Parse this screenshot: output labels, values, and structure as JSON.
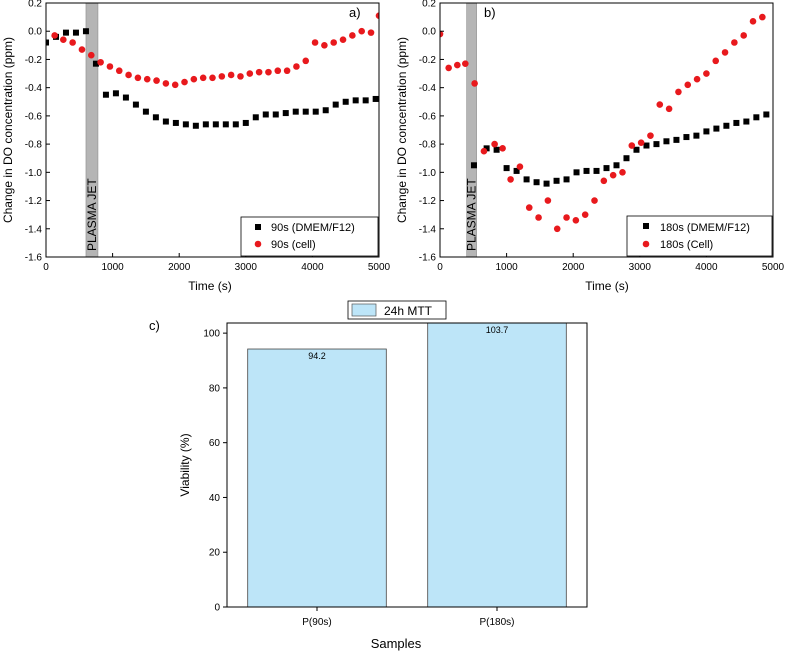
{
  "chart_data": [
    {
      "id": "a",
      "panel_label": "a)",
      "type": "scatter",
      "xlabel": "Time (s)",
      "ylabel": "Change in DO concentration (ppm)",
      "xlim": [
        0,
        5000
      ],
      "ylim": [
        -1.6,
        0.2
      ],
      "xticks": [
        0,
        1000,
        2000,
        3000,
        4000,
        5000
      ],
      "yticks": [
        -1.6,
        -1.4,
        -1.2,
        -1.0,
        -0.8,
        -0.6,
        -0.4,
        -0.2,
        0.0,
        0.2
      ],
      "ytick_labels": [
        "-1.6",
        "-1.4",
        "-1.2",
        "-1.0",
        "-0.8",
        "-0.6",
        "-0.4",
        "-0.2",
        "0.0",
        "0.2"
      ],
      "band": {
        "label": "PLASMA JET",
        "x_start": 600,
        "x_end": 780
      },
      "legend_position": "bottom-right",
      "series": [
        {
          "name": "90s (DMEM/F12)",
          "marker": "square",
          "color": "#000000",
          "x": [
            0,
            150,
            300,
            450,
            600,
            750,
            900,
            1050,
            1200,
            1350,
            1500,
            1650,
            1800,
            1950,
            2100,
            2250,
            2400,
            2550,
            2700,
            2850,
            3000,
            3150,
            3300,
            3450,
            3600,
            3750,
            3900,
            4050,
            4200,
            4350,
            4500,
            4650,
            4800,
            4950
          ],
          "y": [
            -0.08,
            -0.04,
            -0.01,
            -0.01,
            0.0,
            -0.23,
            -0.45,
            -0.44,
            -0.47,
            -0.52,
            -0.57,
            -0.61,
            -0.64,
            -0.65,
            -0.66,
            -0.67,
            -0.66,
            -0.66,
            -0.66,
            -0.66,
            -0.65,
            -0.61,
            -0.59,
            -0.59,
            -0.58,
            -0.57,
            -0.57,
            -0.57,
            -0.56,
            -0.52,
            -0.5,
            -0.49,
            -0.49,
            -0.48
          ]
        },
        {
          "name": "90s (cell)",
          "marker": "circle",
          "color": "#e8191d",
          "x": [
            130,
            260,
            400,
            540,
            680,
            820,
            960,
            1100,
            1240,
            1380,
            1520,
            1660,
            1800,
            1940,
            2080,
            2220,
            2360,
            2500,
            2640,
            2780,
            2920,
            3060,
            3200,
            3340,
            3480,
            3620,
            3760,
            3900,
            4040,
            4180,
            4320,
            4460,
            4600,
            4740,
            4880,
            5000
          ],
          "y": [
            -0.03,
            -0.06,
            -0.08,
            -0.13,
            -0.17,
            -0.22,
            -0.25,
            -0.28,
            -0.31,
            -0.33,
            -0.34,
            -0.35,
            -0.37,
            -0.38,
            -0.36,
            -0.34,
            -0.33,
            -0.33,
            -0.32,
            -0.31,
            -0.32,
            -0.3,
            -0.29,
            -0.29,
            -0.28,
            -0.28,
            -0.25,
            -0.21,
            -0.08,
            -0.1,
            -0.08,
            -0.06,
            -0.03,
            0.0,
            -0.01,
            0.11
          ]
        }
      ]
    },
    {
      "id": "b",
      "panel_label": "b)",
      "type": "scatter",
      "xlabel": "Time (s)",
      "ylabel": "Change in DO concentration (ppm)",
      "xlim": [
        0,
        5000
      ],
      "ylim": [
        -1.6,
        0.2
      ],
      "xticks": [
        0,
        1000,
        2000,
        3000,
        4000,
        5000
      ],
      "yticks": [
        -1.6,
        -1.4,
        -1.2,
        -1.0,
        -0.8,
        -0.6,
        -0.4,
        -0.2,
        0.0,
        0.2
      ],
      "ytick_labels": [
        "-1.6",
        "-1.4",
        "-1.2",
        "-1.0",
        "-0.8",
        "-0.6",
        "-0.4",
        "-0.2",
        "0.0",
        "0.2"
      ],
      "band": {
        "label": "PLASMA JET",
        "x_start": 400,
        "x_end": 550
      },
      "legend_position": "bottom-right",
      "series": [
        {
          "name": "180s (DMEM/F12)",
          "marker": "square",
          "color": "#000000",
          "x": [
            510,
            700,
            850,
            1000,
            1150,
            1300,
            1450,
            1600,
            1750,
            1900,
            2050,
            2200,
            2350,
            2500,
            2650,
            2800,
            2950,
            3100,
            3250,
            3400,
            3550,
            3700,
            3850,
            4000,
            4150,
            4300,
            4450,
            4600,
            4750,
            4900
          ],
          "y": [
            -0.95,
            -0.83,
            -0.84,
            -0.97,
            -0.99,
            -1.05,
            -1.07,
            -1.08,
            -1.06,
            -1.05,
            -1.0,
            -0.99,
            -0.99,
            -0.97,
            -0.95,
            -0.9,
            -0.84,
            -0.81,
            -0.8,
            -0.78,
            -0.77,
            -0.75,
            -0.74,
            -0.71,
            -0.69,
            -0.67,
            -0.65,
            -0.64,
            -0.61,
            -0.59
          ]
        },
        {
          "name": "180s (Cell)",
          "marker": "circle",
          "color": "#e8191d",
          "x": [
            0,
            130,
            260,
            380,
            520,
            660,
            820,
            940,
            1060,
            1200,
            1340,
            1480,
            1620,
            1760,
            1900,
            2040,
            2180,
            2320,
            2460,
            2600,
            2740,
            2880,
            3020,
            3160,
            3300,
            3440,
            3580,
            3720,
            3860,
            4000,
            4140,
            4280,
            4420,
            4560,
            4700,
            4840
          ],
          "y": [
            -0.02,
            -0.26,
            -0.24,
            -0.23,
            -0.37,
            -0.85,
            -0.8,
            -0.83,
            -1.05,
            -0.96,
            -1.25,
            -1.32,
            -1.2,
            -1.4,
            -1.32,
            -1.34,
            -1.3,
            -1.2,
            -1.06,
            -1.02,
            -1.0,
            -0.81,
            -0.79,
            -0.74,
            -0.52,
            -0.55,
            -0.43,
            -0.38,
            -0.34,
            -0.3,
            -0.21,
            -0.15,
            -0.08,
            -0.03,
            0.07,
            0.1
          ]
        }
      ]
    },
    {
      "id": "c",
      "panel_label": "c)",
      "type": "bar",
      "xlabel": "Samples",
      "ylabel": "Viability (%)",
      "ylim": [
        0,
        103.7
      ],
      "yticks": [
        0,
        20,
        40,
        60,
        80,
        100
      ],
      "categories": [
        "P(90s)",
        "P(180s)"
      ],
      "values": [
        94.2,
        103.7
      ],
      "value_labels": [
        "94.2",
        "103.7"
      ],
      "legend": "24h MTT",
      "bar_color": "#bde5f8",
      "legend_position": "top-center"
    }
  ]
}
